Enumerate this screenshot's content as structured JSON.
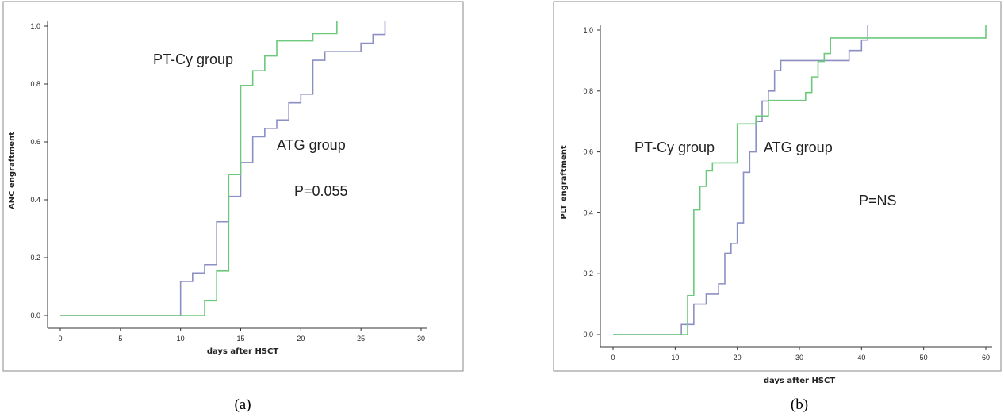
{
  "chart_data": [
    {
      "type": "line",
      "panel_label": "(a)",
      "xlabel": "days after HSCT",
      "ylabel": "ANC engraftment",
      "xlim": [
        0,
        30
      ],
      "ylim": [
        0,
        1
      ],
      "x_ticks": [
        "0",
        "5",
        "10",
        "15",
        "20",
        "25",
        "30"
      ],
      "y_ticks": [
        "0.0",
        "0.2",
        "0.4",
        "0.6",
        "0.8",
        "1.0"
      ],
      "annotations": [
        {
          "text": "PT-Cy group"
        },
        {
          "text": "ATG group"
        },
        {
          "text": "P=0.055"
        }
      ],
      "series": [
        {
          "color": "#8b8fc4",
          "x": [
            0,
            10,
            11,
            12,
            13,
            14,
            15,
            16,
            17,
            18,
            19,
            20,
            21,
            22,
            23,
            24,
            25,
            26,
            27
          ],
          "y": [
            0.0,
            0.118,
            0.147,
            0.176,
            0.324,
            0.412,
            0.529,
            0.618,
            0.647,
            0.676,
            0.735,
            0.765,
            0.882,
            0.912,
            0.912,
            0.912,
            0.941,
            0.971,
            1.0
          ]
        },
        {
          "color": "#6cc97b",
          "x": [
            0,
            12,
            13,
            14,
            15,
            16,
            17,
            18,
            19,
            20,
            21,
            22,
            23
          ],
          "y": [
            0.0,
            0.051,
            0.154,
            0.487,
            0.795,
            0.846,
            0.897,
            0.949,
            0.949,
            0.949,
            0.974,
            0.974,
            1.0
          ]
        }
      ]
    },
    {
      "type": "line",
      "panel_label": "(b)",
      "xlabel": "days after HSCT",
      "ylabel": "PLT engraftment",
      "xlim": [
        0,
        60
      ],
      "ylim": [
        0,
        1
      ],
      "x_ticks": [
        "0",
        "10",
        "20",
        "30",
        "40",
        "50",
        "60"
      ],
      "y_ticks": [
        "0.0",
        "0.2",
        "0.4",
        "0.6",
        "0.8",
        "1.0"
      ],
      "annotations": [
        {
          "text": "PT-Cy group"
        },
        {
          "text": "ATG group"
        },
        {
          "text": "P=NS"
        }
      ],
      "series": [
        {
          "color": "#8b8fc4",
          "x": [
            0,
            11,
            12,
            13,
            15,
            17,
            18,
            19,
            20,
            21,
            22,
            23,
            24,
            25,
            26,
            27,
            30,
            35,
            38,
            40,
            41
          ],
          "y": [
            0.0,
            0.033,
            0.033,
            0.1,
            0.133,
            0.167,
            0.267,
            0.3,
            0.367,
            0.533,
            0.6,
            0.7,
            0.767,
            0.8,
            0.867,
            0.9,
            0.9,
            0.9,
            0.933,
            0.967,
            1.0
          ]
        },
        {
          "color": "#6cc97b",
          "x": [
            0,
            12,
            13,
            14,
            15,
            16,
            20,
            23,
            25,
            28,
            31,
            32,
            33,
            34,
            35,
            40,
            60
          ],
          "y": [
            0.0,
            0.128,
            0.41,
            0.487,
            0.538,
            0.564,
            0.692,
            0.718,
            0.769,
            0.769,
            0.795,
            0.846,
            0.897,
            0.923,
            0.974,
            0.974,
            1.0
          ]
        }
      ]
    }
  ]
}
